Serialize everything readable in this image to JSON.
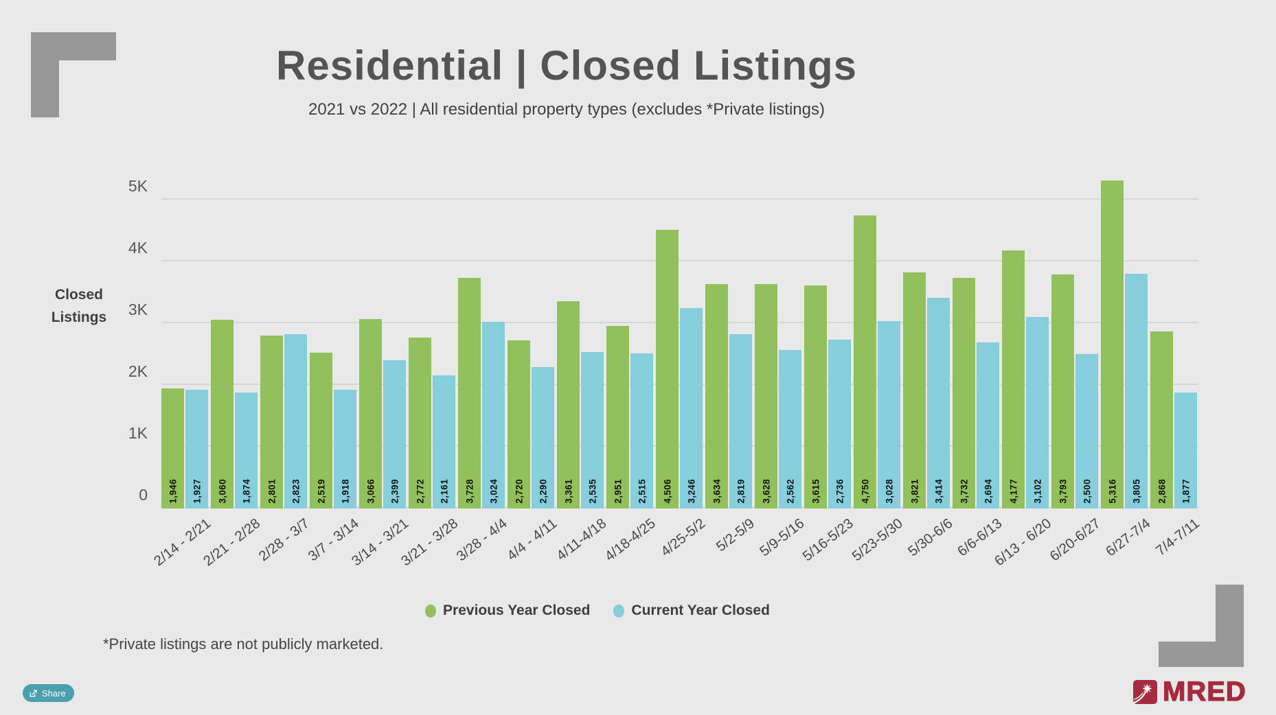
{
  "page": {
    "background": "#e8e9e8",
    "bracket_color": "#989898"
  },
  "header": {
    "title": "Residential | Closed Listings",
    "subtitle": "2021 vs 2022 | All residential property types (excludes *Private listings)"
  },
  "chart_data": {
    "type": "bar",
    "title": "Residential | Closed Listings",
    "subtitle": "2021 vs 2022 | All residential property types (excludes *Private listings)",
    "ylabel": "Closed Listings",
    "ylabel_lines": [
      "Closed",
      "Listings"
    ],
    "ylim": [
      0,
      5500
    ],
    "yticks": [
      0,
      1000,
      2000,
      3000,
      4000,
      5000
    ],
    "ytick_labels": [
      "0",
      "1K",
      "2K",
      "3K",
      "4K",
      "5K"
    ],
    "grid": true,
    "legend_position": "bottom",
    "categories": [
      "2/14 - 2/21",
      "2/21 - 2/28",
      "2/28 - 3/7",
      "3/7 - 3/14",
      "3/14 - 3/21",
      "3/21 - 3/28",
      "3/28 - 4/4",
      "4/4 - 4/11",
      "4/11-4/18",
      "4/18-4/25",
      "4/25-5/2",
      "5/2-5/9",
      "5/9-5/16",
      "5/16-5/23",
      "5/23-5/30",
      "5/30-6/6",
      "6/6-6/13",
      "6/13 - 6/20",
      "6/20-6/27",
      "6/27-7/4",
      "7/4-7/11"
    ],
    "series": [
      {
        "name": "Previous Year Closed",
        "color": "#92c15c",
        "values": [
          1946,
          3060,
          2801,
          2519,
          3066,
          2772,
          3728,
          2720,
          3361,
          2951,
          4506,
          3634,
          3628,
          3615,
          4750,
          3821,
          3732,
          4177,
          3793,
          5316,
          2868
        ]
      },
      {
        "name": "Current Year Closed",
        "color": "#87cedd",
        "values": [
          1927,
          1874,
          2823,
          1918,
          2399,
          2161,
          3024,
          2290,
          2535,
          2515,
          3246,
          2819,
          2562,
          2736,
          3028,
          3414,
          2694,
          3102,
          2500,
          3805,
          1877
        ]
      }
    ]
  },
  "footer": {
    "footnote": "*Private listings are not publicly marketed.",
    "share_label": "Share",
    "brand": "MRED",
    "brand_color": "#a52c3e",
    "share_button_color": "#4aa0ad"
  }
}
